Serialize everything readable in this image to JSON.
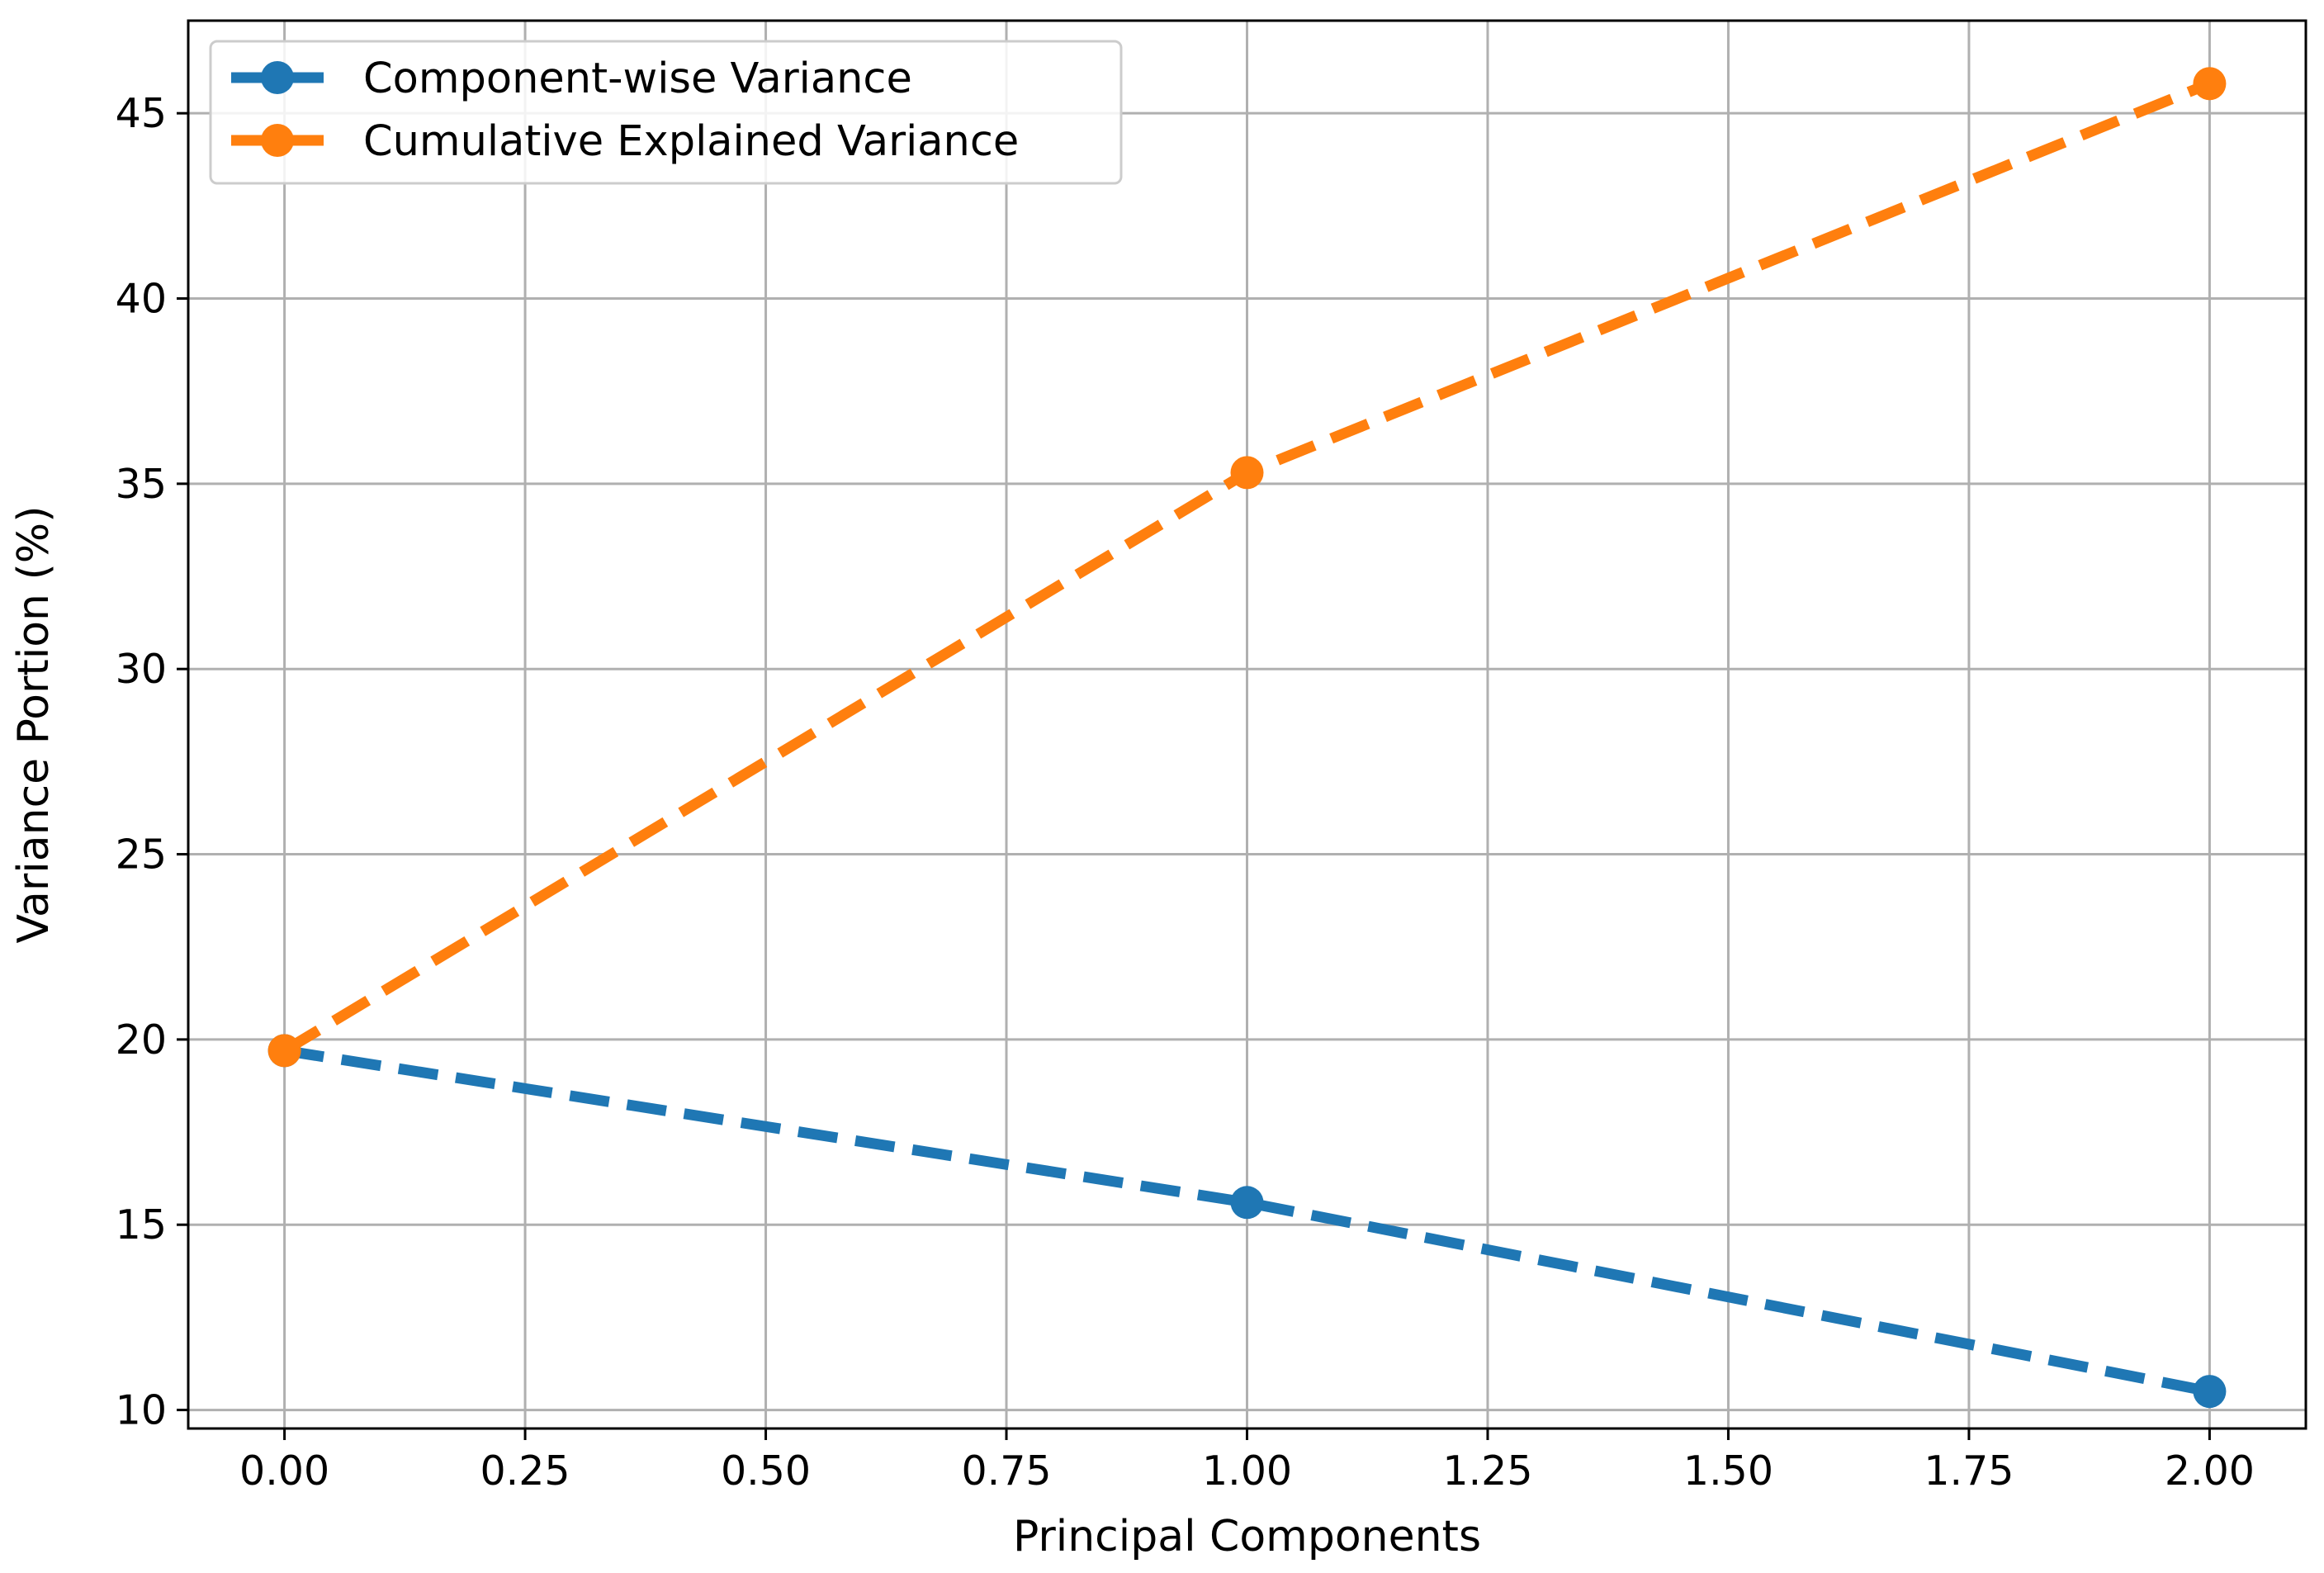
{
  "chart_data": {
    "type": "line",
    "title": "",
    "xlabel": "Principal Components",
    "ylabel": "Variance Portion (%)",
    "xlim": [
      -0.1,
      2.1
    ],
    "ylim": [
      9.5,
      47.5
    ],
    "x_ticks": [
      0.0,
      0.25,
      0.5,
      0.75,
      1.0,
      1.25,
      1.5,
      1.75,
      2.0
    ],
    "x_tick_labels": [
      "0.00",
      "0.25",
      "0.50",
      "0.75",
      "1.00",
      "1.25",
      "1.50",
      "1.75",
      "2.00"
    ],
    "y_ticks": [
      10,
      15,
      20,
      25,
      30,
      35,
      40,
      45
    ],
    "y_tick_labels": [
      "10",
      "15",
      "20",
      "25",
      "30",
      "35",
      "40",
      "45"
    ],
    "grid": true,
    "legend_position": "top-left",
    "x": [
      0,
      1,
      2
    ],
    "series": [
      {
        "name": "Component-wise Variance",
        "values": [
          19.7,
          15.6,
          10.5
        ],
        "color": "#1f77b4",
        "line_style": "dashed",
        "marker": "circle"
      },
      {
        "name": "Cumulative Explained Variance",
        "values": [
          19.7,
          35.3,
          45.8
        ],
        "color": "#ff7f0e",
        "line_style": "dashed",
        "marker": "circle"
      }
    ]
  }
}
